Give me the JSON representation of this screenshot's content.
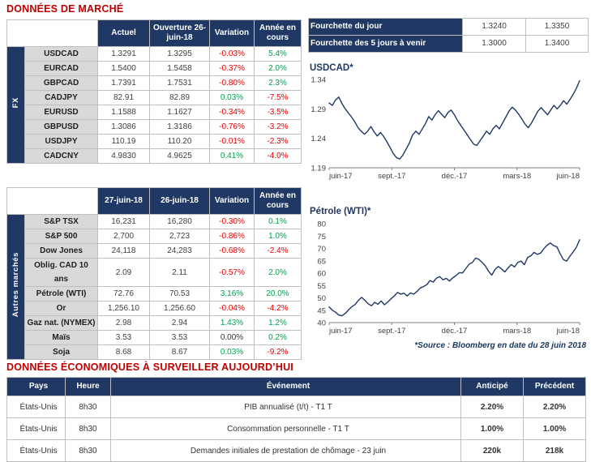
{
  "titles": {
    "market": "DONNÉES DE MARCHÉ",
    "econ": "DONNÉES ÉCONOMIQUES À SURVEILLER AUJOURD’HUI",
    "source": "*Source : Bloomberg en date du 28 juin 2018"
  },
  "colors": {
    "accent_red": "#C00000",
    "navy": "#1F3864",
    "negative": "#E80000",
    "positive": "#00A050",
    "neutral": "#333333"
  },
  "fx_table": {
    "side_label": "FX",
    "headers": [
      "Actuel",
      "Ouverture 26-juin-18",
      "Variation",
      "Année en cours"
    ],
    "rows": [
      {
        "label": "USDCAD",
        "v1": "1.3291",
        "v2": "1.3295",
        "chg": "-0.03%",
        "ytd": "5.4%"
      },
      {
        "label": "EURCAD",
        "v1": "1.5400",
        "v2": "1.5458",
        "chg": "-0.37%",
        "ytd": "2.0%"
      },
      {
        "label": "GBPCAD",
        "v1": "1.7391",
        "v2": "1.7531",
        "chg": "-0.80%",
        "ytd": "2.3%"
      },
      {
        "label": "CADJPY",
        "v1": "82.91",
        "v2": "82.89",
        "chg": "0.03%",
        "ytd": "-7.5%"
      },
      {
        "label": "EURUSD",
        "v1": "1.1588",
        "v2": "1.1627",
        "chg": "-0.34%",
        "ytd": "-3.5%"
      },
      {
        "label": "GBPUSD",
        "v1": "1.3086",
        "v2": "1.3186",
        "chg": "-0.76%",
        "ytd": "-3.2%"
      },
      {
        "label": "USDJPY",
        "v1": "110.19",
        "v2": "110.20",
        "chg": "-0.01%",
        "ytd": "-2.3%"
      },
      {
        "label": "CADCNY",
        "v1": "4.9830",
        "v2": "4.9625",
        "chg": "0.41%",
        "ytd": "-4.0%"
      }
    ]
  },
  "ranges_table": {
    "rows": [
      {
        "label": "Fourchette du jour",
        "low": "1.3240",
        "high": "1.3350"
      },
      {
        "label": "Fourchette des 5 jours à venir",
        "low": "1.3000",
        "high": "1.3400"
      }
    ]
  },
  "markets_table": {
    "side_label": "Autres marchés",
    "headers": [
      "27-juin-18",
      "26-juin-18",
      "Variation",
      "Année en cours"
    ],
    "rows": [
      {
        "label": "S&P TSX",
        "v1": "16,231",
        "v2": "16,280",
        "chg": "-0.30%",
        "ytd": "0.1%"
      },
      {
        "label": "S&P 500",
        "v1": "2,700",
        "v2": "2,723",
        "chg": "-0.86%",
        "ytd": "1.0%"
      },
      {
        "label": "Dow Jones",
        "v1": "24,118",
        "v2": "24,283",
        "chg": "-0.68%",
        "ytd": "-2.4%"
      },
      {
        "label": "Oblig. CAD 10 ans",
        "v1": "2.09",
        "v2": "2.11",
        "chg": "-0.57%",
        "ytd": "2.0%"
      },
      {
        "label": "Pétrole (WTI)",
        "v1": "72.76",
        "v2": "70.53",
        "chg": "3.16%",
        "ytd": "20.0%"
      },
      {
        "label": "Or",
        "v1": "1,256.10",
        "v2": "1,256.60",
        "chg": "-0.04%",
        "ytd": "-4.2%"
      },
      {
        "label": "Gaz nat. (NYMEX)",
        "v1": "2.98",
        "v2": "2.94",
        "chg": "1.43%",
        "ytd": "1.2%"
      },
      {
        "label": "Maïs",
        "v1": "3.53",
        "v2": "3.53",
        "chg": "0.00%",
        "ytd": "0.2%"
      },
      {
        "label": "Soja",
        "v1": "8.68",
        "v2": "8.67",
        "chg": "0.03%",
        "ytd": "-9.2%"
      }
    ]
  },
  "econ_table": {
    "headers": [
      "Pays",
      "Heure",
      "Événement",
      "Anticipé",
      "Précédent"
    ],
    "rows": [
      {
        "country": "États-Unis",
        "time": "8h30",
        "event": "PIB annualisé (t/t) - T1 T",
        "anticipated": "2.20%",
        "previous": "2.20%"
      },
      {
        "country": "États-Unis",
        "time": "8h30",
        "event": "Consommation personnelle - T1 T",
        "anticipated": "1.00%",
        "previous": "1.00%"
      },
      {
        "country": "États-Unis",
        "time": "8h30",
        "event": "Demandes initiales de prestation de chômage - 23 juin",
        "anticipated": "220k",
        "previous": "218k"
      }
    ]
  },
  "chart_data": [
    {
      "type": "line",
      "title": "USDCAD*",
      "xlabel": "",
      "ylabel": "",
      "x_tick_labels": [
        "juin-17",
        "sept.-17",
        "déc.-17",
        "mars-18",
        "juin-18"
      ],
      "y_tick_labels": [
        "1.19",
        "1.24",
        "1.29",
        "1.34"
      ],
      "ylim": [
        1.19,
        1.34
      ],
      "grid": false,
      "legend": false,
      "line_color": "#1F3864",
      "values": [
        1.3,
        1.296,
        1.305,
        1.31,
        1.299,
        1.29,
        1.283,
        1.276,
        1.268,
        1.258,
        1.252,
        1.247,
        1.252,
        1.26,
        1.251,
        1.244,
        1.25,
        1.243,
        1.234,
        1.224,
        1.214,
        1.207,
        1.205,
        1.212,
        1.222,
        1.232,
        1.246,
        1.252,
        1.247,
        1.256,
        1.265,
        1.277,
        1.271,
        1.28,
        1.287,
        1.281,
        1.275,
        1.284,
        1.288,
        1.28,
        1.27,
        1.262,
        1.254,
        1.246,
        1.238,
        1.23,
        1.228,
        1.236,
        1.244,
        1.252,
        1.247,
        1.256,
        1.262,
        1.256,
        1.266,
        1.276,
        1.286,
        1.293,
        1.288,
        1.281,
        1.273,
        1.264,
        1.258,
        1.266,
        1.276,
        1.286,
        1.292,
        1.286,
        1.28,
        1.288,
        1.296,
        1.29,
        1.296,
        1.304,
        1.298,
        1.306,
        1.315,
        1.325,
        1.338
      ]
    },
    {
      "type": "line",
      "title": "Pétrole (WTI)*",
      "xlabel": "",
      "ylabel": "",
      "x_tick_labels": [
        "juin-17",
        "sept.-17",
        "déc.-17",
        "mars-18",
        "juin-18"
      ],
      "y_tick_labels": [
        "40",
        "45",
        "50",
        "55",
        "60",
        "65",
        "70",
        "75",
        "80"
      ],
      "ylim": [
        40,
        80
      ],
      "grid": false,
      "legend": false,
      "line_color": "#1F3864",
      "values": [
        46.3,
        45.0,
        44.2,
        43.0,
        42.8,
        43.8,
        45.2,
        46.5,
        47.3,
        49.0,
        50.2,
        49.0,
        47.6,
        46.8,
        48.2,
        47.4,
        48.8,
        47.2,
        48.3,
        49.6,
        50.8,
        52.2,
        51.5,
        51.9,
        50.8,
        52.0,
        51.5,
        52.6,
        54.0,
        54.6,
        55.3,
        57.0,
        56.4,
        58.0,
        58.6,
        57.3,
        57.9,
        56.8,
        58.1,
        59.0,
        60.2,
        60.1,
        61.8,
        63.6,
        64.3,
        66.1,
        65.6,
        64.4,
        63.0,
        60.8,
        59.2,
        61.5,
        62.7,
        61.7,
        60.5,
        62.1,
        63.5,
        62.5,
        64.4,
        64.9,
        63.4,
        66.3,
        67.0,
        68.4,
        67.6,
        68.1,
        69.9,
        71.3,
        72.2,
        71.1,
        70.7,
        67.9,
        65.5,
        64.9,
        66.9,
        68.6,
        70.5,
        73.5
      ]
    }
  ]
}
